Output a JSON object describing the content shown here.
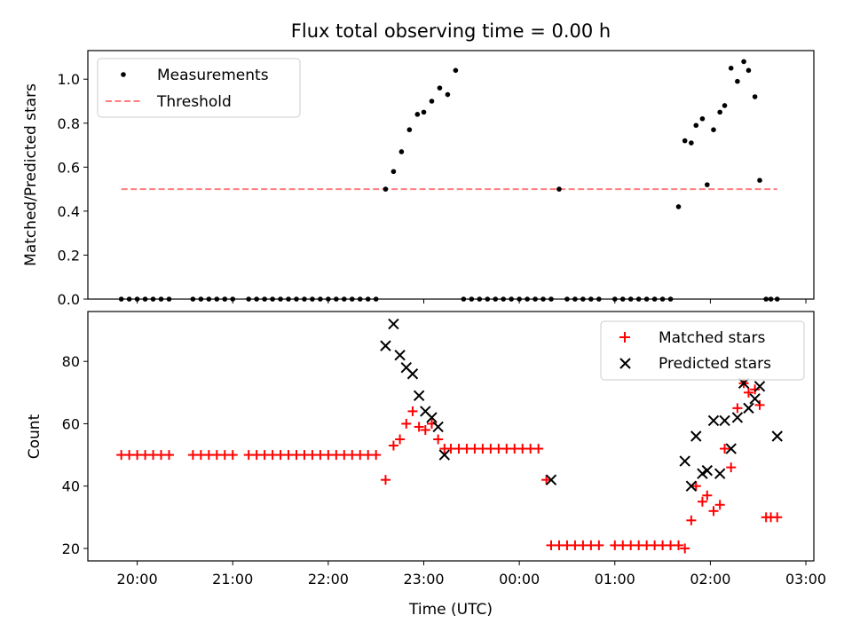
{
  "figure": {
    "title": "Flux total observing time = 0.00 h"
  },
  "chart_data": [
    {
      "type": "scatter",
      "ylabel": "Matched/Predicted stars",
      "xlabel": "",
      "ylim": [
        0,
        1.13
      ],
      "xlim": [
        "19:29",
        "03:05"
      ],
      "yticks": [
        "0.0",
        "0.2",
        "0.4",
        "0.6",
        "0.8",
        "1.0"
      ],
      "grid": false,
      "legend_position": "top-left",
      "series": [
        {
          "name": "Measurements",
          "marker": "dot",
          "color": "#000000",
          "x": [
            "19:50",
            "19:55",
            "20:00",
            "20:05",
            "20:10",
            "20:15",
            "20:20",
            "20:35",
            "20:40",
            "20:45",
            "20:50",
            "20:55",
            "21:00",
            "21:10",
            "21:15",
            "21:20",
            "21:25",
            "21:30",
            "21:35",
            "21:40",
            "21:45",
            "21:50",
            "21:55",
            "22:00",
            "22:05",
            "22:10",
            "22:15",
            "22:20",
            "22:25",
            "22:30",
            "22:36",
            "22:41",
            "22:46",
            "22:51",
            "22:56",
            "23:00",
            "23:05",
            "23:10",
            "23:15",
            "23:20",
            "23:25",
            "23:30",
            "23:35",
            "23:40",
            "23:45",
            "23:50",
            "23:55",
            "00:00",
            "00:05",
            "00:10",
            "00:15",
            "00:20",
            "00:25",
            "00:30",
            "00:35",
            "00:40",
            "00:45",
            "00:50",
            "01:00",
            "01:05",
            "01:10",
            "01:15",
            "01:20",
            "01:25",
            "01:30",
            "01:35",
            "01:40",
            "01:44",
            "01:48",
            "01:51",
            "01:55",
            "01:58",
            "02:02",
            "02:06",
            "02:09",
            "02:13",
            "02:17",
            "02:21",
            "02:24",
            "02:28",
            "02:31",
            "02:35",
            "02:38",
            "02:42"
          ],
          "values": [
            0,
            0,
            0,
            0,
            0,
            0,
            0,
            0,
            0,
            0,
            0,
            0,
            0,
            0,
            0,
            0,
            0,
            0,
            0,
            0,
            0,
            0,
            0,
            0,
            0,
            0,
            0,
            0,
            0,
            0,
            0.5,
            0.58,
            0.67,
            0.77,
            0.84,
            0.85,
            0.9,
            0.96,
            0.93,
            1.04,
            0,
            0,
            0,
            0,
            0,
            0,
            0,
            0,
            0,
            0,
            0,
            0,
            0.5,
            0,
            0,
            0,
            0,
            0,
            0,
            0,
            0,
            0,
            0,
            0,
            0,
            0,
            0.42,
            0.72,
            0.71,
            0.79,
            0.82,
            0.52,
            0.77,
            0.85,
            0.88,
            1.05,
            0.99,
            1.08,
            1.04,
            0.92,
            0.54,
            0,
            0,
            0
          ]
        },
        {
          "name": "Threshold",
          "marker": "dashed-line",
          "color": "#ff7f7f",
          "x": [
            "19:50",
            "02:42"
          ],
          "values": [
            0.5,
            0.5
          ]
        }
      ]
    },
    {
      "type": "scatter",
      "ylabel": "Count",
      "xlabel": "Time (UTC)",
      "ylim": [
        16,
        96
      ],
      "xlim": [
        "19:29",
        "03:05"
      ],
      "xticks": [
        "20:00",
        "21:00",
        "22:00",
        "23:00",
        "00:00",
        "01:00",
        "02:00",
        "03:00"
      ],
      "yticks": [
        "20",
        "40",
        "60",
        "80"
      ],
      "grid": false,
      "legend_position": "top-right",
      "series": [
        {
          "name": "Matched stars",
          "marker": "plus",
          "color": "#ff0000",
          "x": [
            "19:50",
            "19:55",
            "20:00",
            "20:05",
            "20:10",
            "20:15",
            "20:20",
            "20:35",
            "20:40",
            "20:45",
            "20:50",
            "20:55",
            "21:00",
            "21:10",
            "21:15",
            "21:20",
            "21:25",
            "21:30",
            "21:35",
            "21:40",
            "21:45",
            "21:50",
            "21:55",
            "22:00",
            "22:05",
            "22:10",
            "22:15",
            "22:20",
            "22:25",
            "22:30",
            "22:36",
            "22:41",
            "22:45",
            "22:49",
            "22:53",
            "22:57",
            "23:01",
            "23:05",
            "23:09",
            "23:13",
            "23:17",
            "23:22",
            "23:27",
            "23:32",
            "23:37",
            "23:42",
            "23:47",
            "23:52",
            "23:57",
            "00:02",
            "00:07",
            "00:12",
            "00:17",
            "00:20",
            "00:25",
            "00:30",
            "00:35",
            "00:40",
            "00:45",
            "00:50",
            "01:00",
            "01:05",
            "01:10",
            "01:15",
            "01:20",
            "01:25",
            "01:30",
            "01:35",
            "01:40",
            "01:44",
            "01:48",
            "01:51",
            "01:55",
            "01:58",
            "02:02",
            "02:06",
            "02:09",
            "02:13",
            "02:17",
            "02:21",
            "02:24",
            "02:28",
            "02:31",
            "02:35",
            "02:38",
            "02:42"
          ],
          "values": [
            50,
            50,
            50,
            50,
            50,
            50,
            50,
            50,
            50,
            50,
            50,
            50,
            50,
            50,
            50,
            50,
            50,
            50,
            50,
            50,
            50,
            50,
            50,
            50,
            50,
            50,
            50,
            50,
            50,
            50,
            42,
            53,
            55,
            60,
            64,
            59,
            58,
            60,
            55,
            52,
            52,
            52,
            52,
            52,
            52,
            52,
            52,
            52,
            52,
            52,
            52,
            52,
            42,
            21,
            21,
            21,
            21,
            21,
            21,
            21,
            21,
            21,
            21,
            21,
            21,
            21,
            21,
            21,
            21,
            20,
            29,
            40,
            35,
            37,
            32,
            34,
            52,
            46,
            65,
            73,
            70,
            71,
            66,
            30,
            30,
            30
          ]
        },
        {
          "name": "Predicted stars",
          "marker": "x",
          "color": "#000000",
          "x": [
            "22:36",
            "22:41",
            "22:45",
            "22:49",
            "22:53",
            "22:57",
            "23:01",
            "23:05",
            "23:09",
            "23:13",
            "00:20",
            "01:44",
            "01:48",
            "01:51",
            "01:55",
            "01:58",
            "02:02",
            "02:06",
            "02:09",
            "02:13",
            "02:17",
            "02:21",
            "02:24",
            "02:28",
            "02:31",
            "02:42"
          ],
          "values": [
            85,
            92,
            82,
            78,
            76,
            69,
            64,
            62,
            59,
            50,
            42,
            48,
            40,
            56,
            44,
            45,
            61,
            44,
            61,
            52,
            62,
            73,
            65,
            68,
            72,
            56
          ]
        }
      ]
    }
  ]
}
